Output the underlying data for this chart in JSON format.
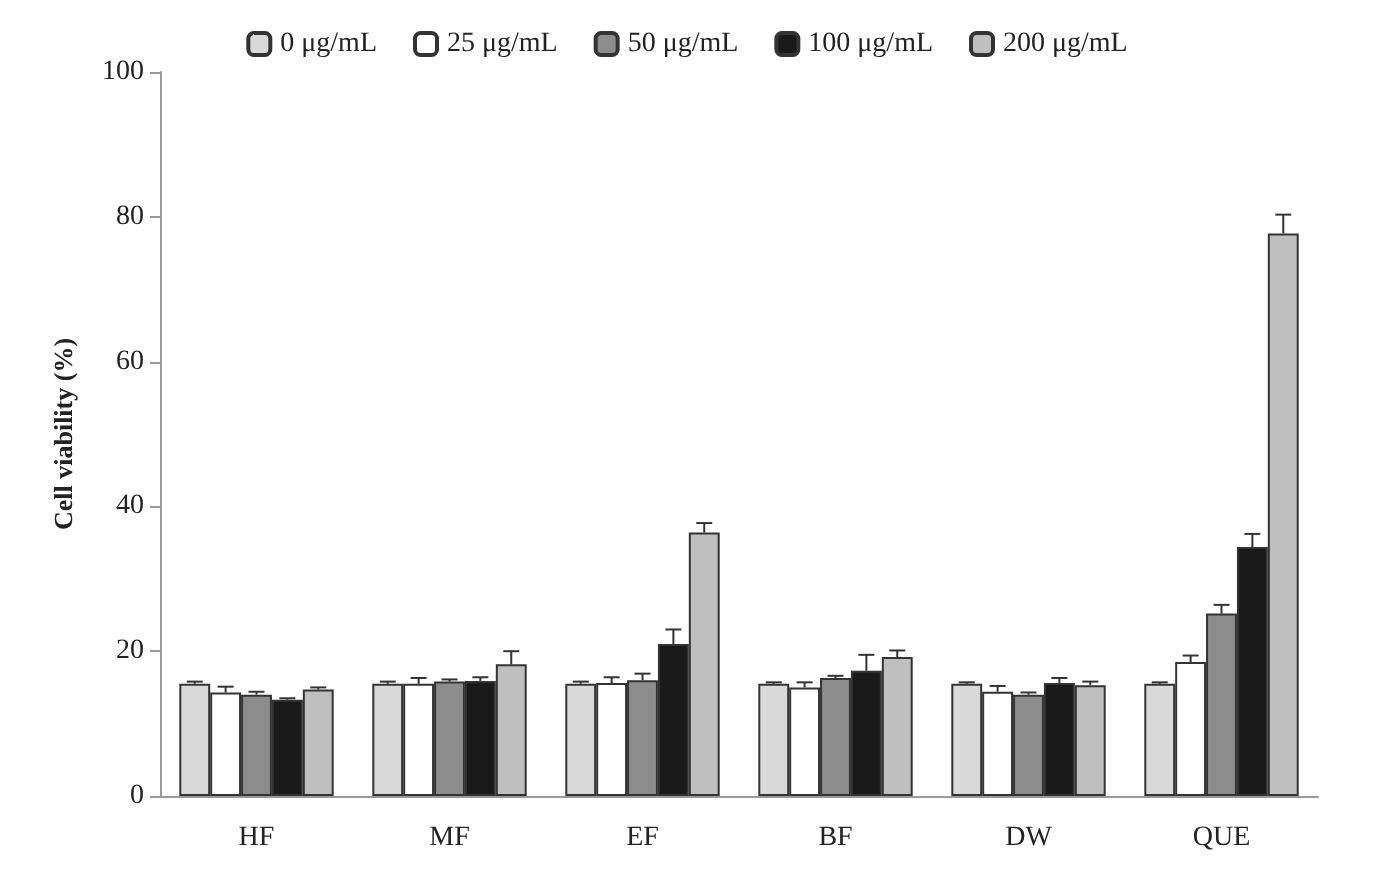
{
  "chart_data": {
    "type": "bar",
    "ylabel": "Cell viability (%)",
    "categories": [
      "HF",
      "MF",
      "EF",
      "BF",
      "DW",
      "QUE"
    ],
    "series": [
      {
        "name": "0 μg/mL",
        "color": "#d9d9d9",
        "values": [
          15.5,
          15.5,
          15.5,
          15.5,
          15.5,
          15.5
        ],
        "errors": [
          0.3,
          0.3,
          0.3,
          0.2,
          0.2,
          0.2
        ]
      },
      {
        "name": "25 μg/mL",
        "color": "#ffffff",
        "values": [
          14.3,
          15.5,
          15.6,
          15.0,
          14.4,
          18.5
        ],
        "errors": [
          0.8,
          0.8,
          0.8,
          0.7,
          0.8,
          0.9
        ]
      },
      {
        "name": "50 μg/mL",
        "color": "#8c8c8c",
        "values": [
          14.0,
          15.8,
          16.0,
          16.3,
          14.0,
          25.2
        ],
        "errors": [
          0.4,
          0.3,
          0.9,
          0.3,
          0.3,
          1.2
        ]
      },
      {
        "name": "100 μg/mL",
        "color": "#1a1a1a",
        "values": [
          13.3,
          15.9,
          21.0,
          17.3,
          15.6,
          34.4
        ],
        "errors": [
          0.2,
          0.5,
          2.0,
          2.2,
          0.7,
          1.8
        ]
      },
      {
        "name": "200 μg/mL",
        "color": "#bfbfbf",
        "values": [
          14.7,
          18.2,
          36.4,
          19.2,
          15.3,
          77.7
        ],
        "errors": [
          0.3,
          1.8,
          1.3,
          0.9,
          0.5,
          2.6
        ]
      }
    ],
    "ylim": [
      0,
      100
    ],
    "yticks": [
      0,
      20,
      40,
      60,
      80,
      100
    ],
    "legend": "top"
  }
}
